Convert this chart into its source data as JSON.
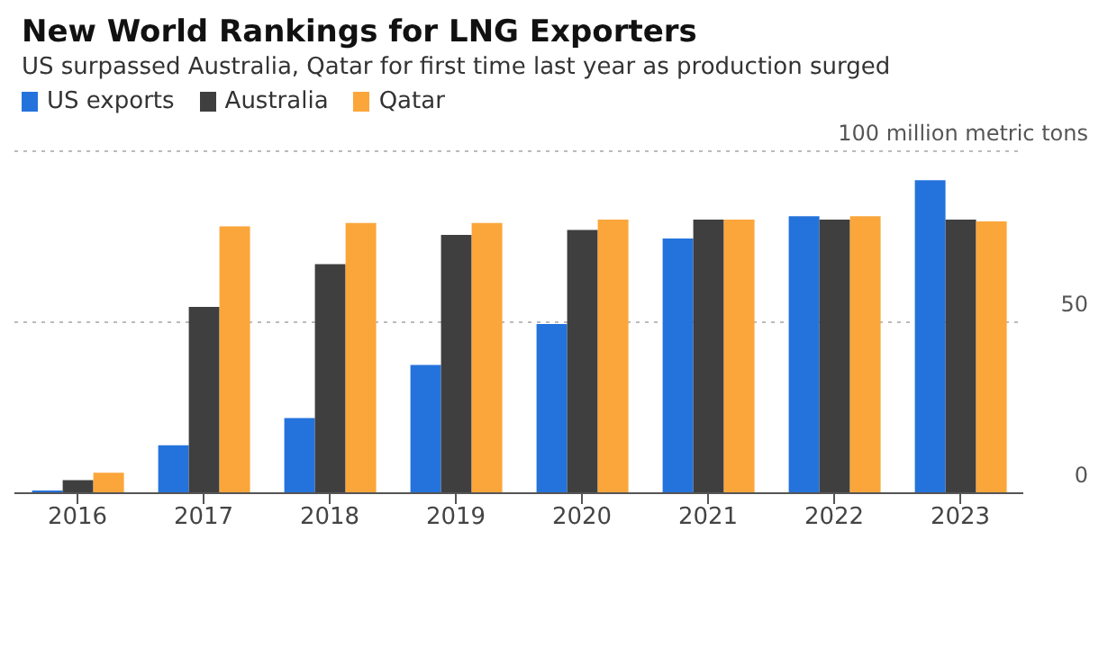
{
  "chart_data": {
    "type": "bar",
    "title": "New World Rankings for LNG Exporters",
    "subtitle": "US surpassed Australia, Qatar for first time last year as production surged",
    "categories": [
      "2016",
      "2017",
      "2018",
      "2019",
      "2020",
      "2021",
      "2022",
      "2023"
    ],
    "series": [
      {
        "name": "US exports",
        "color": "#2473dc",
        "values": [
          0.8,
          14,
          22,
          37.5,
          49.5,
          74.5,
          81,
          91.5
        ]
      },
      {
        "name": "Australia",
        "color": "#3f3f3f",
        "values": [
          3.8,
          54.5,
          67,
          75.5,
          77,
          80,
          80,
          80
        ]
      },
      {
        "name": "Qatar",
        "color": "#fba63b",
        "values": [
          6,
          78,
          79,
          79,
          80,
          80,
          81,
          79.5
        ]
      }
    ],
    "ylim": [
      0,
      100
    ],
    "yticks": [
      0,
      50,
      {
        "value": 100,
        "label": "100 million metric tons"
      }
    ],
    "grid": "y",
    "legend": "top left"
  }
}
